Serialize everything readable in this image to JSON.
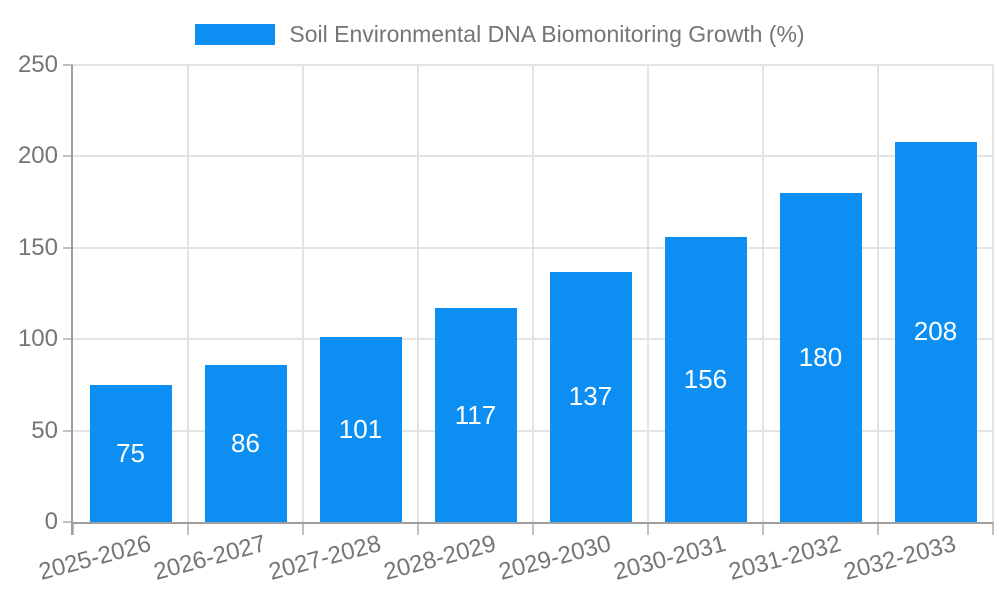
{
  "legend": {
    "label": "Soil Environmental DNA Biomonitoring Growth (%)",
    "swatch_color": "#0d8ef2"
  },
  "chart_data": {
    "type": "bar",
    "title": "Soil Environmental DNA Biomonitoring Growth (%)",
    "categories": [
      "2025-2026",
      "2026-2027",
      "2027-2028",
      "2028-2029",
      "2029-2030",
      "2030-2031",
      "2031-2032",
      "2032-2033"
    ],
    "values": [
      75,
      86,
      101,
      117,
      137,
      156,
      180,
      208
    ],
    "xlabel": "",
    "ylabel": "",
    "ylim": [
      0,
      250
    ],
    "yticks": [
      0,
      50,
      100,
      150,
      200,
      250
    ],
    "grid": true,
    "legend_position": "top",
    "x_label_rotation_deg": -15,
    "value_labels": "centered-inside-bars",
    "colors": {
      "bar": "#0d8ef2",
      "bar_value_label": "#ffffff",
      "gridline": "#e3e3e3",
      "axis_line": "#9e9e9e",
      "tick_mark": "#c0c0c0",
      "tick_label": "#757575",
      "background": "#ffffff"
    }
  }
}
